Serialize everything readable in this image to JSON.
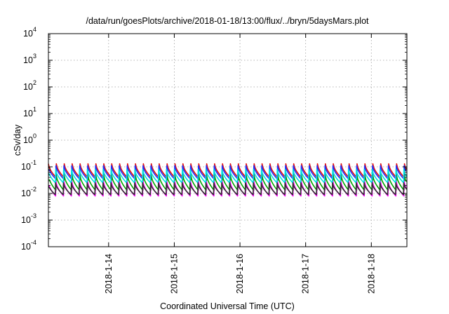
{
  "chart_data": {
    "type": "line",
    "title": "/data/run/goesPlots/archive/2018-01-18/13:00/flux/../bryn/5daysMars.plot",
    "xlabel": "Coordinated Universal Time (UTC)",
    "ylabel": "cSv/day",
    "yscale": "log",
    "ylim": [
      0.0001,
      10000
    ],
    "xlim": [
      "2018-01-13T02:00",
      "2018-01-18T13:00"
    ],
    "grid": true,
    "x_ticks": [
      "2018-1-14",
      "2018-1-15",
      "2018-1-16",
      "2018-1-17",
      "2018-1-18"
    ],
    "y_ticks": [
      {
        "base": "10",
        "exp": "-4"
      },
      {
        "base": "10",
        "exp": "-3"
      },
      {
        "base": "10",
        "exp": "-2"
      },
      {
        "base": "10",
        "exp": "-1"
      },
      {
        "base": "10",
        "exp": "0"
      },
      {
        "base": "10",
        "exp": "1"
      },
      {
        "base": "10",
        "exp": "2"
      },
      {
        "base": "10",
        "exp": "3"
      },
      {
        "base": "10",
        "exp": "4"
      }
    ],
    "series": [
      {
        "color": "#e01010",
        "sawtooth_cycles_per_day": 8.3,
        "peak": 0.13,
        "trough": 0.04
      },
      {
        "color": "#00a000",
        "sawtooth_cycles_per_day": 8.3,
        "peak": 0.05,
        "trough": 0.013
      },
      {
        "color": "#2030ff",
        "sawtooth_cycles_per_day": 8.3,
        "peak": 0.11,
        "trough": 0.035
      },
      {
        "color": "#ff00ff",
        "sawtooth_cycles_per_day": 8.3,
        "peak": 0.03,
        "trough": 0.008
      },
      {
        "color": "#00e0e0",
        "sawtooth_cycles_per_day": 8.3,
        "peak": 0.08,
        "trough": 0.025
      },
      {
        "color": "#303030",
        "sawtooth_cycles_per_day": 8.3,
        "peak": 0.025,
        "trough": 0.009
      }
    ]
  }
}
